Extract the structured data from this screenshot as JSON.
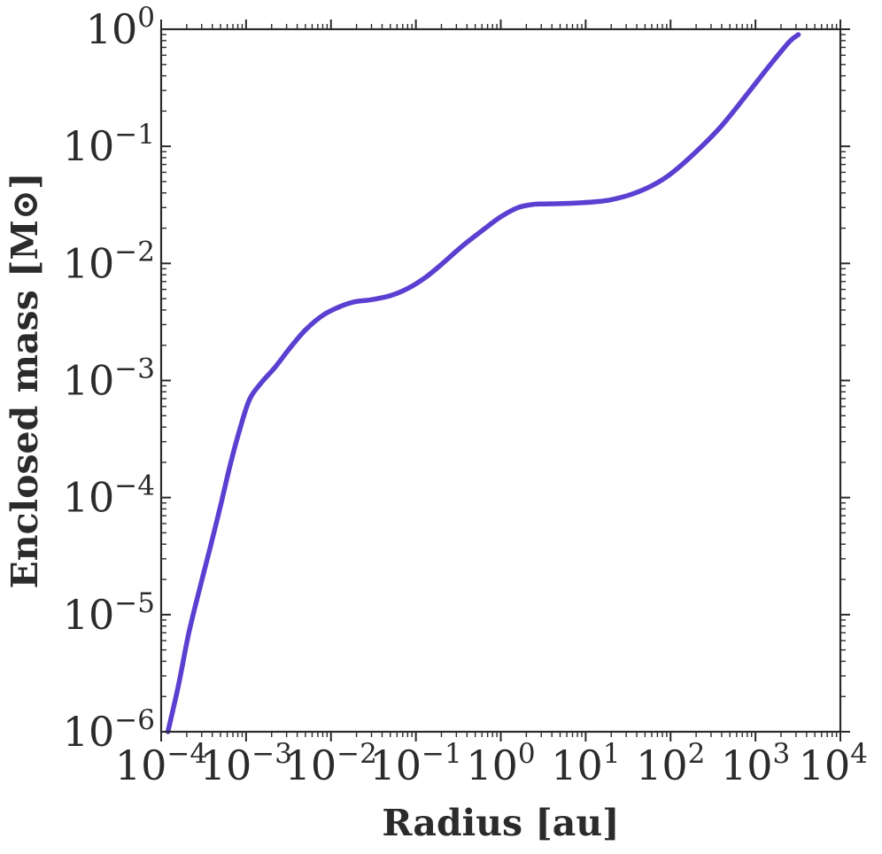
{
  "chart_data": {
    "type": "line",
    "xscale": "log",
    "yscale": "log",
    "xlabel": "Radius [au]",
    "ylabel": "Enclosed mass [M⊙]",
    "xlim": [
      0.0001,
      10000
    ],
    "ylim": [
      1e-06,
      1
    ],
    "xticks": [
      {
        "base": "10",
        "exp": "−4",
        "value": 0.0001
      },
      {
        "base": "10",
        "exp": "−3",
        "value": 0.001
      },
      {
        "base": "10",
        "exp": "−2",
        "value": 0.01
      },
      {
        "base": "10",
        "exp": "−1",
        "value": 0.1
      },
      {
        "base": "10",
        "exp": "0",
        "value": 1
      },
      {
        "base": "10",
        "exp": "1",
        "value": 10
      },
      {
        "base": "10",
        "exp": "2",
        "value": 100
      },
      {
        "base": "10",
        "exp": "3",
        "value": 1000
      },
      {
        "base": "10",
        "exp": "4",
        "value": 10000
      }
    ],
    "yticks": [
      {
        "base": "10",
        "exp": "−6",
        "value": 1e-06
      },
      {
        "base": "10",
        "exp": "−5",
        "value": 1e-05
      },
      {
        "base": "10",
        "exp": "−4",
        "value": 0.0001
      },
      {
        "base": "10",
        "exp": "−3",
        "value": 0.001
      },
      {
        "base": "10",
        "exp": "−2",
        "value": 0.01
      },
      {
        "base": "10",
        "exp": "−1",
        "value": 0.1
      },
      {
        "base": "10",
        "exp": "0",
        "value": 1
      }
    ],
    "grid": false,
    "line_color": "#5a3fd1",
    "series": [
      {
        "x": [
          0.00012,
          0.00016,
          0.00021,
          0.00028,
          0.00038,
          0.0005,
          0.00065,
          0.00085,
          0.0011,
          0.0015,
          0.0022,
          0.0033,
          0.005,
          0.008,
          0.013,
          0.019,
          0.03,
          0.05,
          0.08,
          0.13,
          0.2,
          0.35,
          0.6,
          1.0,
          1.6,
          2.5,
          3.2,
          5,
          8,
          13,
          20,
          35,
          60,
          100,
          200,
          400,
          800,
          1500,
          2500,
          3200
        ],
        "y": [
          1e-06,
          2.5e-06,
          6.8e-06,
          1.6e-05,
          3.8e-05,
          8.5e-05,
          0.00019,
          0.00039,
          0.00069,
          0.00095,
          0.0013,
          0.0019,
          0.0027,
          0.0036,
          0.0043,
          0.0047,
          0.0049,
          0.0053,
          0.0061,
          0.0076,
          0.0098,
          0.014,
          0.019,
          0.025,
          0.03,
          0.032,
          0.0322,
          0.0324,
          0.0328,
          0.0336,
          0.035,
          0.039,
          0.046,
          0.058,
          0.09,
          0.15,
          0.28,
          0.5,
          0.78,
          0.9
        ]
      }
    ]
  }
}
